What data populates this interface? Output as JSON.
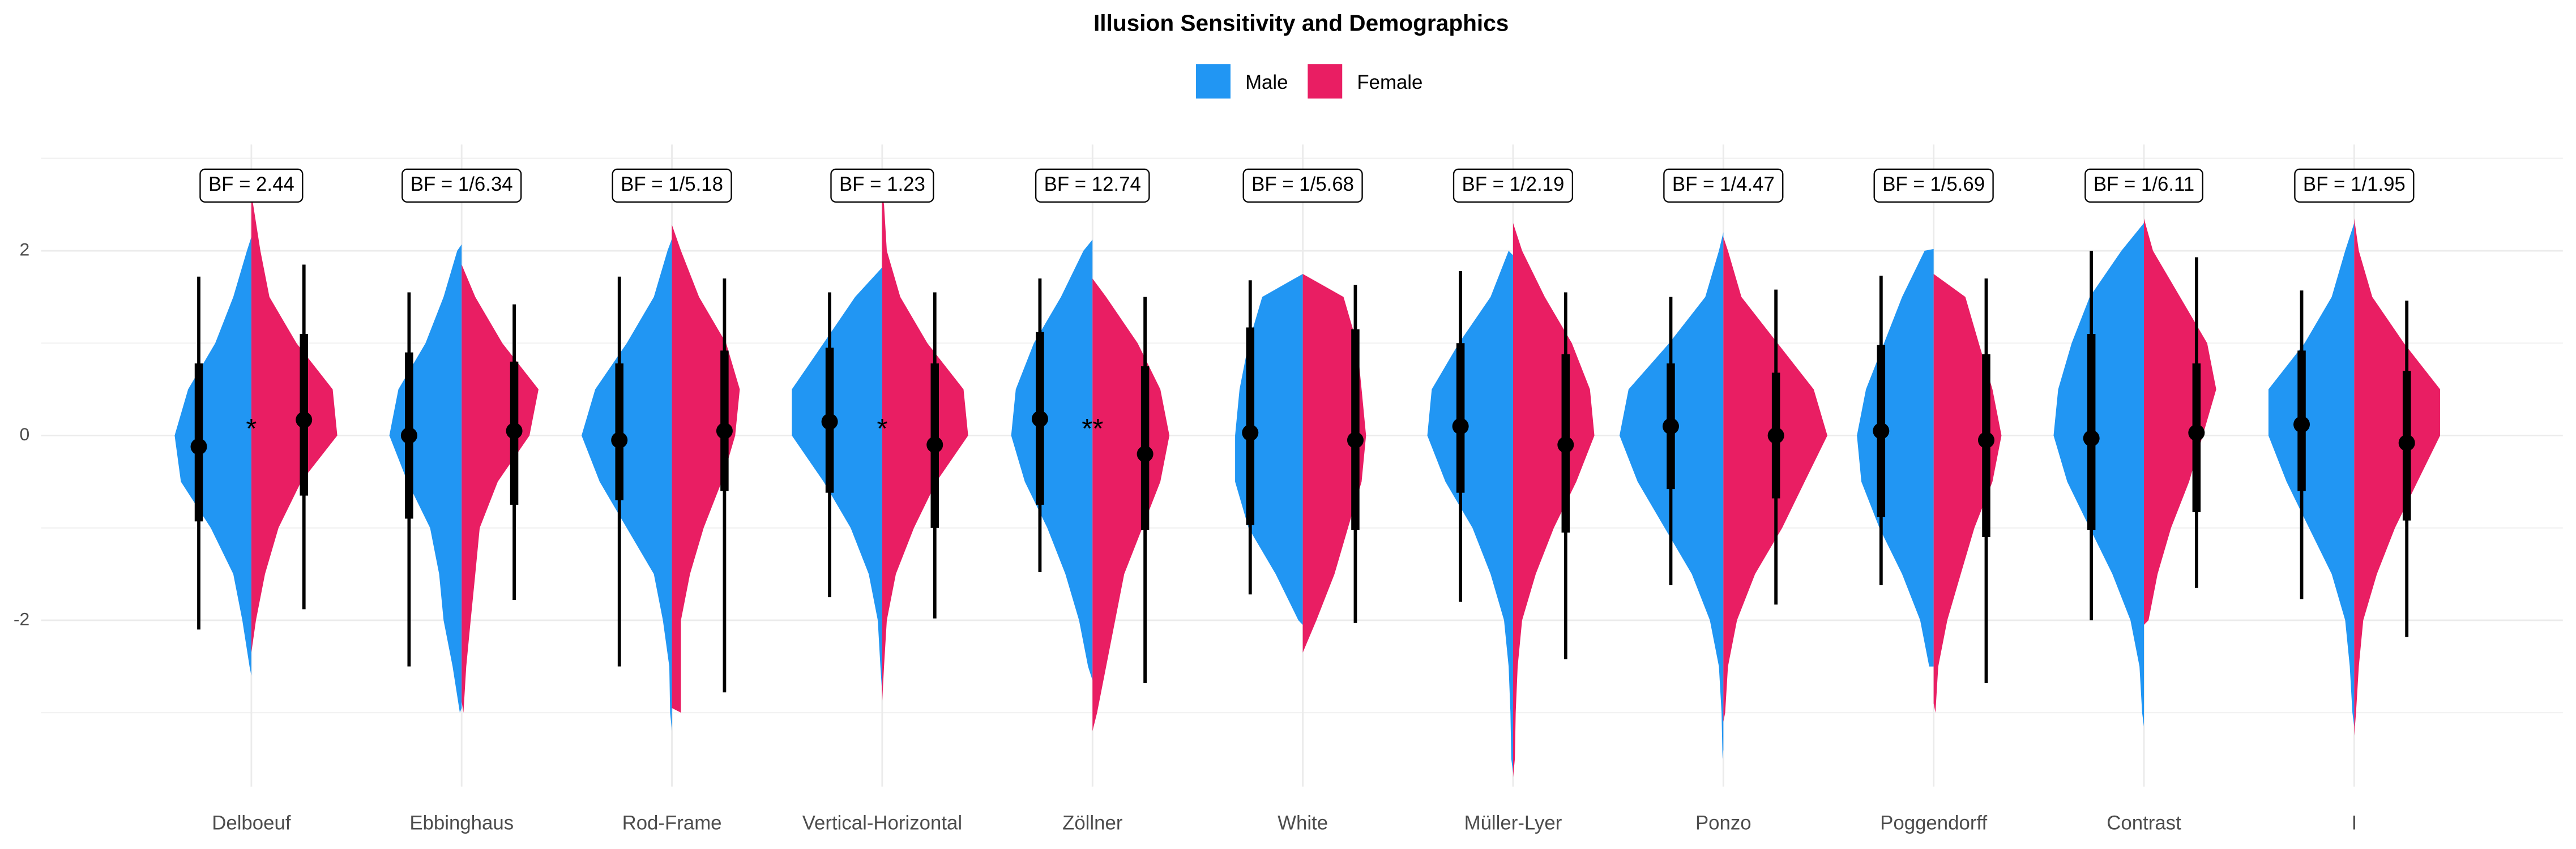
{
  "chart_data": {
    "type": "split-violin",
    "title": "Illusion Sensitivity and Demographics",
    "categories": [
      "Delboeuf",
      "Ebbinghaus",
      "Rod-Frame",
      "Vertical-Horizontal",
      "Zöllner",
      "White",
      "Müller-Lyer",
      "Ponzo",
      "Poggendorff",
      "Contrast",
      "I"
    ],
    "bf_labels": [
      "BF = 2.44",
      "BF = 1/6.34",
      "BF = 1/5.18",
      "BF = 1.23",
      "BF = 12.74",
      "BF = 1/5.68",
      "BF = 1/2.19",
      "BF = 1/4.47",
      "BF = 1/5.69",
      "BF = 1/6.11",
      "BF = 1/1.95"
    ],
    "significance": [
      "*",
      null,
      null,
      "*",
      "**",
      null,
      null,
      null,
      null,
      null,
      null
    ],
    "ylim": [
      -3.8,
      3.15
    ],
    "yticks": [
      -2,
      0,
      2
    ],
    "minor_yticks": [
      -3,
      -1,
      1,
      3
    ],
    "grid": true,
    "legend_position": "top",
    "density_y": [
      -3.5,
      -3,
      -2.5,
      -2,
      -1.5,
      -1,
      -0.5,
      0,
      0.5,
      1,
      1.5,
      2,
      2.5
    ],
    "series": [
      {
        "name": "Male",
        "color": "#2196f3",
        "values": [
          -0.12,
          0.0,
          -0.05,
          0.15,
          0.18,
          0.03,
          0.1,
          0.1,
          0.05,
          -0.03,
          0.12
        ],
        "inner_interval": [
          [
            -0.93,
            0.78
          ],
          [
            -0.9,
            0.9
          ],
          [
            -0.7,
            0.78
          ],
          [
            -0.62,
            0.95
          ],
          [
            -0.75,
            1.12
          ],
          [
            -0.97,
            1.17
          ],
          [
            -0.62,
            1.0
          ],
          [
            -0.58,
            0.78
          ],
          [
            -0.88,
            0.98
          ],
          [
            -1.02,
            1.1
          ],
          [
            -0.6,
            0.92
          ]
        ],
        "outer_interval": [
          [
            -2.1,
            1.72
          ],
          [
            -2.5,
            1.55
          ],
          [
            -2.5,
            1.72
          ],
          [
            -1.75,
            1.55
          ],
          [
            -1.48,
            1.7
          ],
          [
            -1.72,
            1.68
          ],
          [
            -1.8,
            1.78
          ],
          [
            -1.62,
            1.5
          ],
          [
            -1.62,
            1.73
          ],
          [
            -2.0,
            2.0
          ],
          [
            -1.77,
            1.57
          ]
        ],
        "violin_range": [
          [
            -2.6,
            2.15
          ],
          [
            -2.95,
            2.07
          ],
          [
            -3.2,
            2.13
          ],
          [
            -2.8,
            1.82
          ],
          [
            -2.65,
            2.12
          ],
          [
            -2.05,
            1.75
          ],
          [
            -3.65,
            1.95
          ],
          [
            -3.4,
            2.2
          ],
          [
            -2.5,
            2.02
          ],
          [
            -3.15,
            2.3
          ],
          [
            -3.15,
            2.3
          ]
        ],
        "density": [
          [
            null,
            null,
            0.02,
            0.1,
            0.2,
            0.45,
            0.78,
            0.85,
            0.7,
            0.4,
            0.2,
            0.05,
            null
          ],
          [
            null,
            0.02,
            0.1,
            0.2,
            0.25,
            0.35,
            0.6,
            0.8,
            0.7,
            0.4,
            0.2,
            0.05,
            null
          ],
          [
            null,
            0.02,
            0.03,
            0.1,
            0.2,
            0.5,
            0.8,
            1.0,
            0.85,
            0.5,
            0.2,
            0.05,
            null
          ],
          [
            null,
            null,
            0.02,
            0.05,
            0.15,
            0.35,
            0.65,
            1.0,
            1.0,
            0.65,
            0.3,
            null,
            null
          ],
          [
            null,
            null,
            0.05,
            0.15,
            0.3,
            0.5,
            0.75,
            0.9,
            0.85,
            0.65,
            0.35,
            0.1,
            null
          ],
          [
            null,
            null,
            null,
            0.05,
            0.3,
            0.6,
            0.75,
            0.75,
            0.7,
            0.6,
            0.45,
            null,
            null
          ],
          [
            0.02,
            0.03,
            0.05,
            0.1,
            0.25,
            0.45,
            0.75,
            0.95,
            0.9,
            0.6,
            0.25,
            0.05,
            null
          ],
          [
            0.01,
            0.02,
            0.05,
            0.15,
            0.35,
            0.65,
            0.95,
            1.15,
            1.05,
            0.6,
            0.2,
            0.05,
            null
          ],
          [
            null,
            null,
            0.05,
            0.15,
            0.35,
            0.6,
            0.8,
            0.85,
            0.75,
            0.55,
            0.35,
            0.1,
            null
          ],
          [
            null,
            0.02,
            0.05,
            0.15,
            0.35,
            0.6,
            0.85,
            1.0,
            0.95,
            0.8,
            0.6,
            0.25,
            null
          ],
          [
            null,
            0.02,
            0.05,
            0.1,
            0.25,
            0.5,
            0.75,
            0.95,
            0.95,
            0.55,
            0.25,
            0.1,
            null
          ]
        ]
      },
      {
        "name": "Female",
        "color": "#e91e63",
        "values": [
          0.17,
          0.05,
          0.05,
          -0.1,
          -0.2,
          -0.05,
          -0.1,
          0.0,
          -0.05,
          0.03,
          -0.08
        ],
        "inner_interval": [
          [
            -0.65,
            1.1
          ],
          [
            -0.75,
            0.8
          ],
          [
            -0.6,
            0.92
          ],
          [
            -1.0,
            0.78
          ],
          [
            -1.02,
            0.75
          ],
          [
            -1.02,
            1.15
          ],
          [
            -1.05,
            0.88
          ],
          [
            -0.68,
            0.68
          ],
          [
            -1.1,
            0.88
          ],
          [
            -0.83,
            0.78
          ],
          [
            -0.92,
            0.7
          ]
        ],
        "outer_interval": [
          [
            -1.88,
            1.85
          ],
          [
            -1.78,
            1.42
          ],
          [
            -2.78,
            1.7
          ],
          [
            -1.98,
            1.55
          ],
          [
            -2.68,
            1.5
          ],
          [
            -2.03,
            1.63
          ],
          [
            -2.42,
            1.55
          ],
          [
            -1.83,
            1.58
          ],
          [
            -2.68,
            1.7
          ],
          [
            -1.65,
            1.93
          ],
          [
            -2.18,
            1.46
          ]
        ],
        "violin_range": [
          [
            -2.35,
            2.6
          ],
          [
            -2.88,
            1.85
          ],
          [
            -2.95,
            2.28
          ],
          [
            -2.88,
            2.6
          ],
          [
            -3.2,
            1.7
          ],
          [
            -2.35,
            1.75
          ],
          [
            -3.7,
            2.3
          ],
          [
            -3.1,
            2.15
          ],
          [
            -2.9,
            1.75
          ],
          [
            -2.05,
            2.35
          ],
          [
            -3.25,
            2.35
          ]
        ],
        "density": [
          [
            null,
            null,
            null,
            0.05,
            0.15,
            0.3,
            0.55,
            0.95,
            0.9,
            0.5,
            0.2,
            0.1,
            0.02
          ],
          [
            null,
            0.02,
            0.05,
            0.1,
            0.15,
            0.2,
            0.4,
            0.75,
            0.85,
            0.45,
            0.15,
            null,
            null
          ],
          [
            null,
            0.1,
            0.1,
            0.1,
            0.2,
            0.35,
            0.55,
            0.7,
            0.75,
            0.6,
            0.3,
            0.1,
            null
          ],
          [
            null,
            null,
            0.02,
            0.05,
            0.15,
            0.35,
            0.6,
            0.95,
            0.9,
            0.5,
            0.2,
            0.05,
            0.02
          ],
          [
            null,
            0.05,
            0.15,
            0.25,
            0.35,
            0.55,
            0.75,
            0.85,
            0.75,
            0.5,
            0.15,
            null,
            null
          ],
          [
            null,
            null,
            null,
            0.15,
            0.35,
            0.5,
            0.65,
            0.7,
            0.65,
            0.6,
            0.45,
            null,
            null
          ],
          [
            0.02,
            0.03,
            0.05,
            0.1,
            0.25,
            0.45,
            0.7,
            0.9,
            0.85,
            0.65,
            0.35,
            0.1,
            null
          ],
          [
            null,
            0.02,
            0.05,
            0.15,
            0.35,
            0.65,
            0.9,
            1.15,
            1.0,
            0.6,
            0.2,
            0.05,
            null
          ],
          [
            null,
            0.02,
            0.05,
            0.15,
            0.3,
            0.45,
            0.65,
            0.75,
            0.65,
            0.5,
            0.35,
            null,
            null
          ],
          [
            null,
            null,
            null,
            0.05,
            0.15,
            0.3,
            0.5,
            0.65,
            0.8,
            0.7,
            0.4,
            0.1,
            null
          ],
          [
            null,
            0.02,
            0.05,
            0.1,
            0.25,
            0.45,
            0.7,
            0.95,
            0.95,
            0.55,
            0.2,
            0.05,
            null
          ]
        ]
      }
    ]
  }
}
